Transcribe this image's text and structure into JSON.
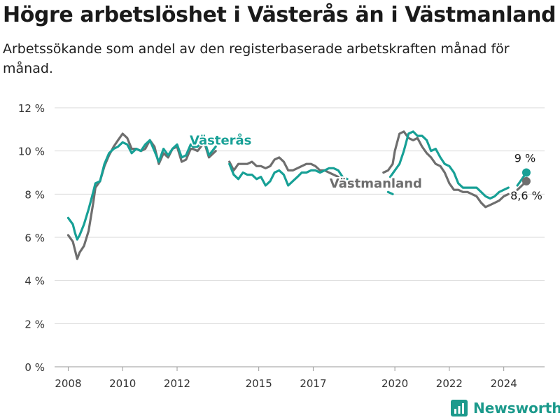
{
  "title": "Högre arbetslöshet i Västerås än i Västmanland",
  "subtitle": "Arbetssökande som andel av den registerbaserade arbetskraften månad för månad.",
  "brand": "Newsworthy",
  "colors": {
    "vasteras": "#17a096",
    "vastmanland": "#6e6e6e",
    "grid": "#d9d9d9",
    "brand": "#1c9a8c"
  },
  "chart_data": {
    "type": "line",
    "title": "Högre arbetslöshet i Västerås än i Västmanland",
    "subtitle": "Arbetssökande som andel av den registerbaserade arbetskraften månad för månad.",
    "ylim": [
      0,
      12
    ],
    "xlim": [
      2007.5,
      2025.5
    ],
    "y_ticks": [
      0,
      2,
      4,
      6,
      8,
      10,
      12
    ],
    "y_tick_labels": [
      "0 %",
      "2 %",
      "4 %",
      "6 %",
      "8 %",
      "10 %",
      "12 %"
    ],
    "x_ticks": [
      2008,
      2010,
      2012,
      2015,
      2017,
      2020,
      2022,
      2024
    ],
    "x_tick_labels": [
      "2008",
      "2010",
      "2012",
      "2015",
      "2017",
      "2020",
      "2022",
      "2024"
    ],
    "grid": "horizontal",
    "legend": "inline labels",
    "end_labels": {
      "Västerås": "9 %",
      "Västmanland": "8,6 %"
    },
    "series": [
      {
        "name": "Västerås",
        "color": "#17a096",
        "x": [
          2008.0,
          2008.17,
          2008.25,
          2008.33,
          2008.42,
          2008.58,
          2008.75,
          2008.92,
          2009.0,
          2009.17,
          2009.33,
          2009.5,
          2009.67,
          2009.83,
          2010.0,
          2010.17,
          2010.33,
          2010.5,
          2010.67,
          2010.83,
          2011.0,
          2011.17,
          2011.33,
          2011.5,
          2011.67,
          2011.83,
          2012.0,
          2012.17,
          2012.33,
          2012.5,
          2012.58,
          2012.75,
          2013.0,
          2013.17,
          2013.42,
          null,
          2013.92,
          2014.08,
          2014.25,
          2014.42,
          2014.58,
          2014.75,
          2014.92,
          2015.08,
          2015.25,
          2015.42,
          2015.58,
          2015.75,
          2015.92,
          2016.08,
          2016.25,
          2016.42,
          2016.58,
          2016.75,
          2016.92,
          2017.08,
          2017.25,
          2017.42,
          2017.58,
          2017.75,
          2017.92,
          2018.08,
          2018.25,
          null,
          2019.75,
          2019.92,
          null,
          2019.83,
          2020.0,
          2020.17,
          2020.33,
          2020.5,
          2020.67,
          2020.83,
          2021.0,
          2021.17,
          2021.33,
          2021.5,
          2021.67,
          2021.83,
          2022.0,
          2022.17,
          2022.33,
          2022.5,
          2022.67,
          2022.83,
          2023.0,
          2023.17,
          2023.33,
          2023.5,
          2023.67,
          2023.83,
          2024.0,
          2024.17,
          null,
          2024.5,
          2024.67,
          2024.83
        ],
        "y": [
          6.9,
          6.6,
          6.2,
          5.9,
          6.1,
          6.6,
          7.3,
          8.1,
          8.5,
          8.6,
          9.4,
          9.9,
          10.1,
          10.2,
          10.4,
          10.3,
          9.9,
          10.1,
          10.0,
          10.3,
          10.5,
          10.0,
          9.5,
          10.1,
          9.8,
          10.1,
          10.3,
          9.7,
          9.8,
          10.3,
          10.2,
          10.2,
          10.5,
          9.8,
          10.2,
          null,
          9.4,
          8.9,
          8.7,
          9.0,
          8.9,
          8.9,
          8.7,
          8.8,
          8.4,
          8.6,
          9.0,
          9.1,
          8.9,
          8.4,
          8.6,
          8.8,
          9.0,
          9.0,
          9.1,
          9.1,
          9.0,
          9.1,
          9.2,
          9.2,
          9.1,
          8.8,
          8.7,
          null,
          8.1,
          8.0,
          null,
          8.8,
          9.1,
          9.4,
          10.0,
          10.8,
          10.9,
          10.7,
          10.7,
          10.5,
          10.0,
          10.1,
          9.7,
          9.4,
          9.3,
          9.0,
          8.5,
          8.3,
          8.3,
          8.3,
          8.3,
          8.1,
          7.9,
          7.8,
          7.9,
          8.1,
          8.2,
          8.3,
          null,
          8.4,
          8.7,
          9.0
        ]
      },
      {
        "name": "Västmanland",
        "color": "#6e6e6e",
        "x": [
          2008.0,
          2008.17,
          2008.25,
          2008.33,
          2008.42,
          2008.58,
          2008.75,
          2008.92,
          2009.0,
          2009.17,
          2009.33,
          2009.5,
          2009.67,
          2009.83,
          2010.0,
          2010.17,
          2010.33,
          2010.5,
          2010.67,
          2010.83,
          2011.0,
          2011.17,
          2011.33,
          2011.5,
          2011.67,
          2011.83,
          2012.0,
          2012.17,
          2012.33,
          2012.5,
          2012.58,
          2012.75,
          2013.0,
          2013.17,
          2013.42,
          null,
          2013.92,
          2014.08,
          2014.25,
          2014.42,
          2014.58,
          2014.75,
          2014.92,
          2015.08,
          2015.25,
          2015.42,
          2015.58,
          2015.75,
          2015.92,
          2016.08,
          2016.25,
          2016.42,
          2016.58,
          2016.75,
          2016.92,
          2017.08,
          2017.25,
          2017.42,
          2017.58,
          2017.75,
          2017.92,
          null,
          2019.58,
          2019.75,
          2019.92,
          2020.0,
          2020.17,
          2020.33,
          2020.5,
          2020.67,
          2020.83,
          2021.0,
          2021.17,
          2021.33,
          2021.5,
          2021.67,
          2021.83,
          2022.0,
          2022.17,
          2022.33,
          2022.5,
          2022.67,
          2022.83,
          2023.0,
          2023.17,
          2023.33,
          2023.5,
          2023.67,
          2023.83,
          2024.0,
          2024.17,
          null,
          2024.5,
          2024.67,
          2024.83
        ],
        "y": [
          6.1,
          5.8,
          5.4,
          5.0,
          5.3,
          5.6,
          6.3,
          7.6,
          8.3,
          8.6,
          9.3,
          9.8,
          10.2,
          10.5,
          10.8,
          10.6,
          10.1,
          10.1,
          10.0,
          10.1,
          10.5,
          10.2,
          9.4,
          9.9,
          9.7,
          10.1,
          10.2,
          9.5,
          9.6,
          10.1,
          10.1,
          10.0,
          10.4,
          9.7,
          10.0,
          null,
          9.5,
          9.1,
          9.4,
          9.4,
          9.4,
          9.5,
          9.3,
          9.3,
          9.2,
          9.3,
          9.6,
          9.7,
          9.5,
          9.1,
          9.1,
          9.2,
          9.3,
          9.4,
          9.4,
          9.3,
          9.1,
          9.1,
          9.0,
          8.9,
          8.8,
          null,
          9.0,
          9.1,
          9.4,
          10.0,
          10.8,
          10.9,
          10.6,
          10.5,
          10.6,
          10.2,
          9.9,
          9.7,
          9.4,
          9.3,
          9.0,
          8.5,
          8.2,
          8.2,
          8.1,
          8.1,
          8.0,
          7.9,
          7.6,
          7.4,
          7.5,
          7.6,
          7.7,
          7.9,
          8.0,
          null,
          8.2,
          8.4,
          8.6
        ]
      }
    ],
    "annotations": [
      {
        "text": "Västerås",
        "series": "Västerås",
        "x": 2013.6,
        "y": 10.3
      },
      {
        "text": "Västmanland",
        "series": "Västmanland",
        "x": 2019.3,
        "y": 8.3
      }
    ]
  }
}
